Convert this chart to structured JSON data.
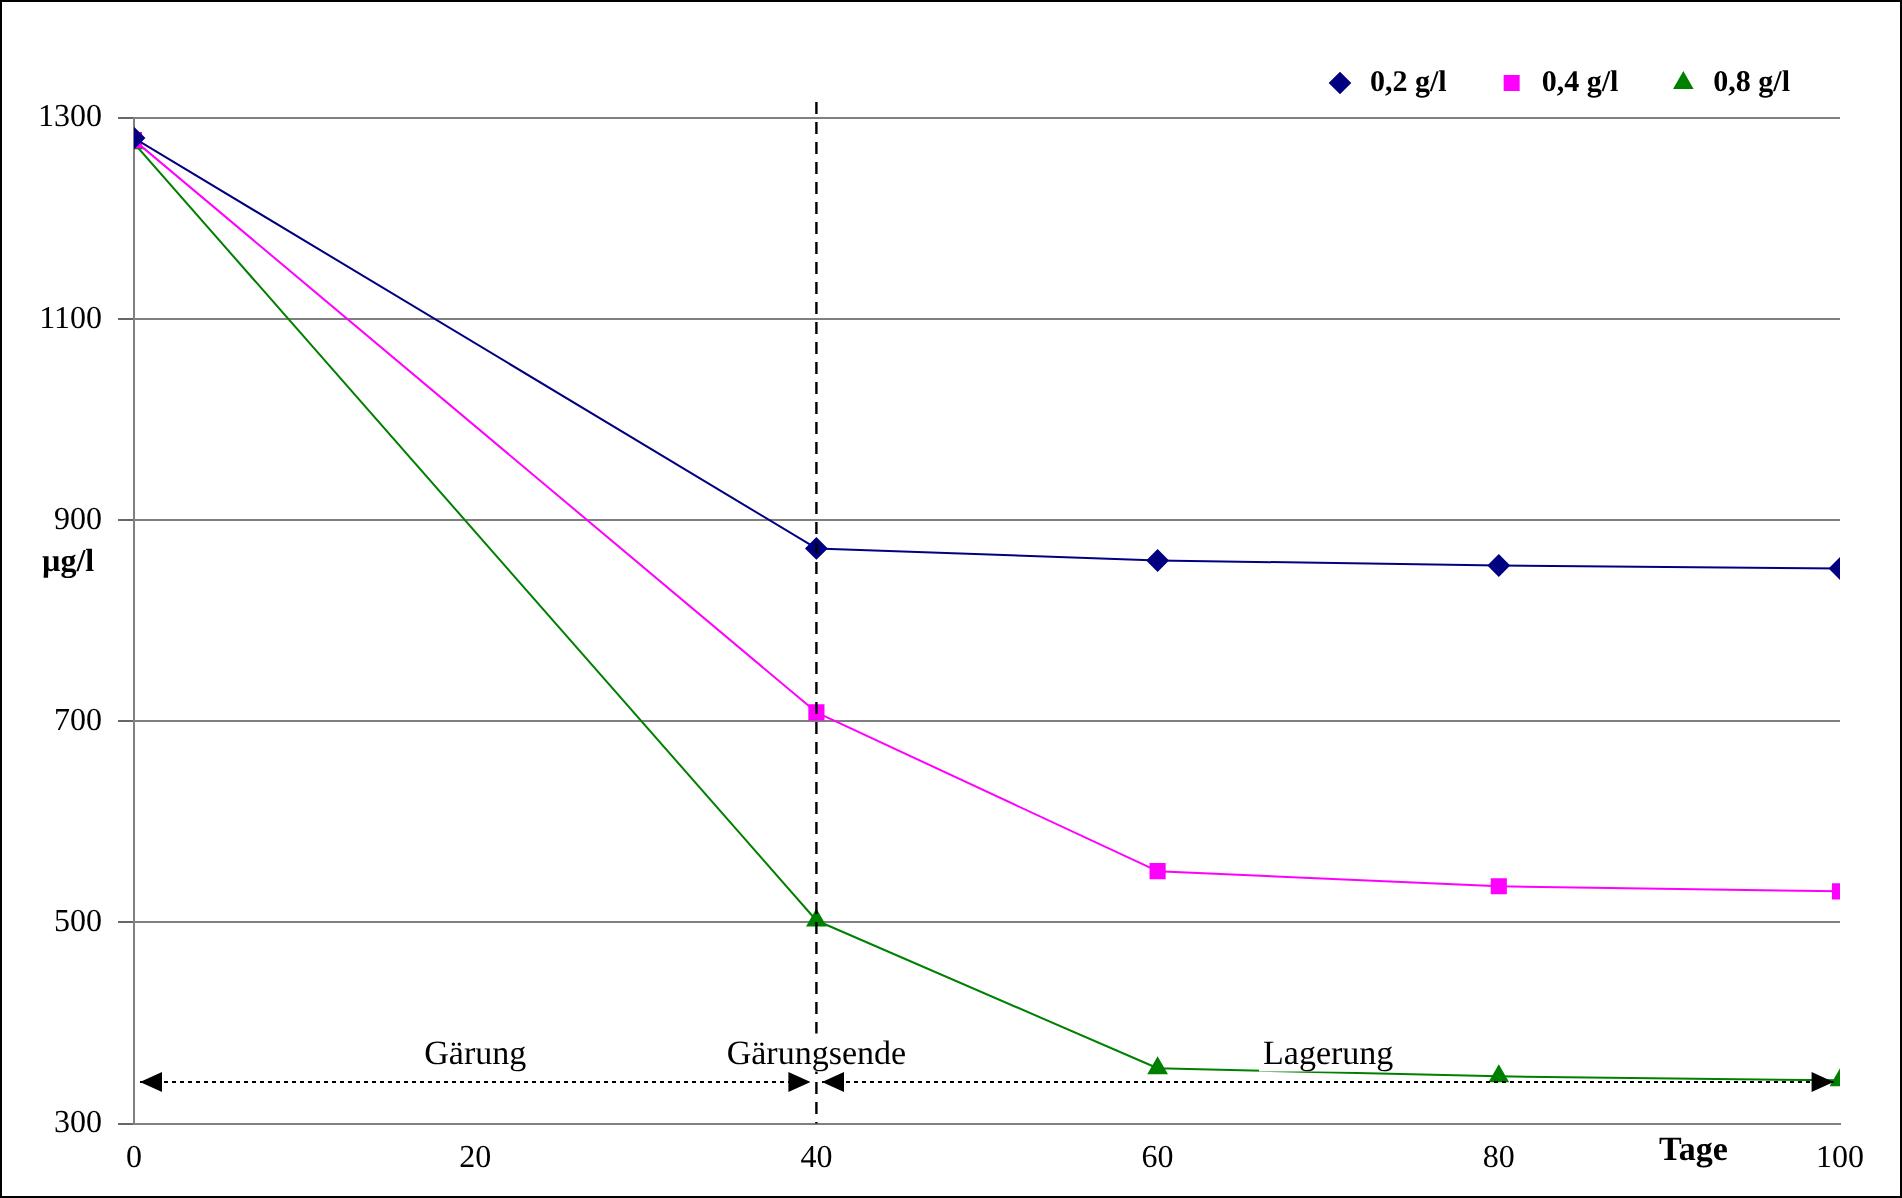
{
  "chart_data": {
    "type": "line",
    "xlabel": "Tage",
    "ylabel": "µg/l",
    "x": [
      0,
      40,
      60,
      80,
      100
    ],
    "series": [
      {
        "name": "0,2 g/l",
        "color": "#000080",
        "marker": "diamond",
        "values": [
          1280,
          872,
          860,
          855,
          852
        ]
      },
      {
        "name": "0,4 g/l",
        "color": "#ff00ff",
        "marker": "square",
        "values": [
          1278,
          709,
          551,
          536,
          531
        ]
      },
      {
        "name": "0,8 g/l",
        "color": "#008000",
        "marker": "triangle",
        "values": [
          1275,
          502,
          355,
          347,
          343
        ]
      }
    ],
    "xlim": [
      0,
      100
    ],
    "xticks": [
      0,
      20,
      40,
      60,
      80,
      100
    ],
    "ylim": [
      300,
      1300
    ],
    "yticks": [
      300,
      500,
      700,
      900,
      1100,
      1300
    ],
    "grid": "y",
    "legend": "top right",
    "line_style": "solid",
    "ref_lines": [
      {
        "axis": "x",
        "value": 40,
        "line_style": "dashed",
        "color": "#000000"
      }
    ],
    "annotations": [
      "Gärung",
      "Gärungsende",
      "Lagerung"
    ]
  }
}
